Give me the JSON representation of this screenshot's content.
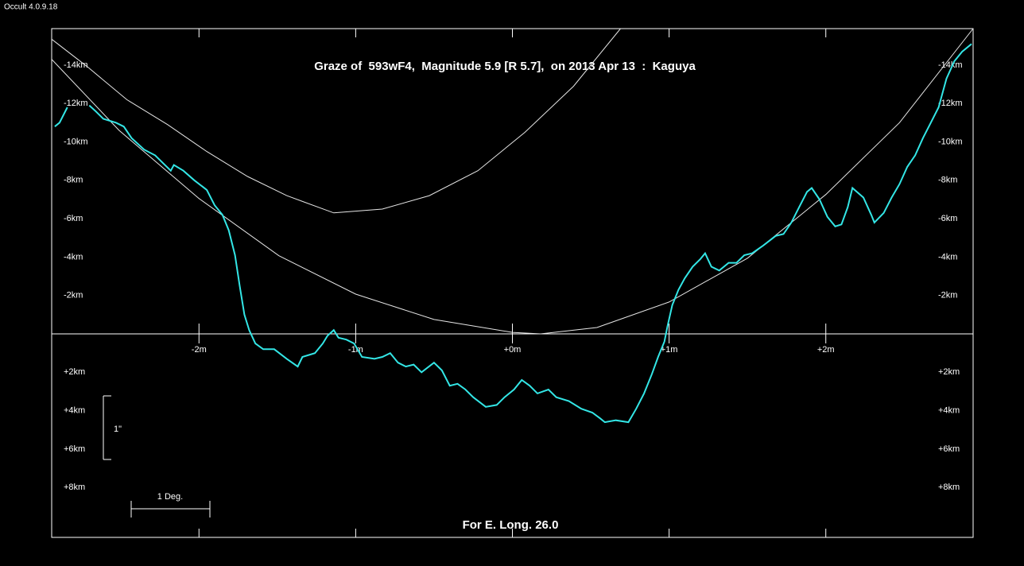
{
  "app_label": "Occult 4.0.9.18",
  "chart_data": {
    "type": "line",
    "title": "Graze of  593wF4,  Magnitude 5.9 [R 5.7],  on 2013 Apr 13  :  Kaguya",
    "footer": "For E. Long. 26.0",
    "scale_labels": {
      "vertical": "1\"",
      "horizontal": "1 Deg."
    },
    "xlim": [
      -2.94,
      2.94
    ],
    "ylim": [
      10.6,
      -15.9
    ],
    "xticks": [
      {
        "value": -2,
        "label": "-2m"
      },
      {
        "value": -1,
        "label": "-1m"
      },
      {
        "value": 0,
        "label": "+0m"
      },
      {
        "value": 1,
        "label": "+1m"
      },
      {
        "value": 2,
        "label": "+2m"
      }
    ],
    "yticks": [
      {
        "value": -14,
        "label": "-14km"
      },
      {
        "value": -12,
        "label": "-12km"
      },
      {
        "value": -10,
        "label": "-10km"
      },
      {
        "value": -8,
        "label": "-8km"
      },
      {
        "value": -6,
        "label": "-6km"
      },
      {
        "value": -4,
        "label": "-4km"
      },
      {
        "value": -2,
        "label": "-2km"
      },
      {
        "value": 2,
        "label": "+2km"
      },
      {
        "value": 4,
        "label": "+4km"
      },
      {
        "value": 6,
        "label": "+6km"
      },
      {
        "value": 8,
        "label": "+8km"
      }
    ],
    "series": [
      {
        "color": "#33e6e6",
        "width": 2,
        "x": [
          -2.92,
          -2.89,
          -2.84,
          null,
          -2.7,
          -2.66,
          -2.61,
          -2.53,
          -2.48,
          -2.43,
          -2.35,
          -2.28,
          -2.23,
          -2.18,
          -2.16,
          -2.1,
          -2.03,
          -1.95,
          -1.9,
          -1.85,
          -1.81,
          -1.77,
          -1.74,
          -1.71,
          -1.68,
          -1.64,
          -1.59,
          -1.52,
          -1.44,
          -1.37,
          -1.34,
          -1.26,
          -1.21,
          -1.18,
          -1.14,
          -1.11,
          -1.06,
          -1.01,
          -0.96,
          -0.88,
          -0.83,
          -0.78,
          -0.73,
          -0.68,
          -0.63,
          -0.58,
          -0.5,
          -0.45,
          -0.4,
          -0.35,
          -0.3,
          -0.25,
          -0.17,
          -0.1,
          -0.05,
          0.01,
          0.06,
          0.11,
          0.16,
          0.23,
          0.28,
          0.36,
          0.44,
          0.51,
          0.56,
          0.59,
          0.66,
          0.74,
          0.79,
          0.84,
          0.89,
          0.93,
          0.97,
          0.99,
          1.02,
          1.06,
          1.1,
          1.15,
          1.2,
          1.23,
          1.27,
          1.32,
          1.38,
          1.43,
          1.48,
          1.53,
          1.6,
          1.68,
          1.73,
          1.78,
          1.83,
          1.88,
          1.91,
          1.96,
          2.01,
          2.06,
          2.1,
          2.14,
          2.17,
          2.24,
          2.29,
          2.31,
          2.37,
          2.42,
          2.47,
          2.52,
          2.57,
          2.62,
          2.67,
          2.72,
          2.77,
          2.82,
          2.87,
          2.93
        ],
        "values": [
          -10.8,
          -11.0,
          -11.8,
          null,
          -11.9,
          -11.6,
          -11.2,
          -11.0,
          -10.8,
          -10.2,
          -9.6,
          -9.3,
          -8.9,
          -8.5,
          -8.8,
          -8.5,
          -8.0,
          -7.5,
          -6.7,
          -6.2,
          -5.4,
          -4.1,
          -2.5,
          -1.0,
          -0.2,
          0.5,
          0.8,
          0.8,
          1.3,
          1.7,
          1.2,
          1.0,
          0.5,
          0.1,
          -0.2,
          0.2,
          0.3,
          0.5,
          1.2,
          1.3,
          1.2,
          1.0,
          1.5,
          1.7,
          1.6,
          2.0,
          1.5,
          1.9,
          2.7,
          2.6,
          2.9,
          3.3,
          3.8,
          3.7,
          3.3,
          2.9,
          2.4,
          2.7,
          3.1,
          2.9,
          3.3,
          3.5,
          3.9,
          4.1,
          4.4,
          4.6,
          4.5,
          4.6,
          3.9,
          3.1,
          2.1,
          1.2,
          0.4,
          -0.4,
          -1.5,
          -2.3,
          -2.9,
          -3.5,
          -3.9,
          -4.2,
          -3.5,
          -3.3,
          -3.7,
          -3.7,
          -4.1,
          -4.2,
          -4.6,
          -5.1,
          -5.2,
          -5.8,
          -6.6,
          -7.4,
          -7.6,
          -7.0,
          -6.1,
          -5.6,
          -5.7,
          -6.6,
          -7.6,
          -7.1,
          -6.2,
          -5.8,
          -6.3,
          -7.1,
          -7.8,
          -8.7,
          -9.3,
          -10.2,
          -11.0,
          -11.8,
          -13.3,
          -14.2,
          -14.7,
          -15.1
        ]
      },
      {
        "color": "#e6e6e6",
        "width": 1,
        "x": [
          -2.94,
          -2.51,
          -2.0,
          -1.49,
          -1.0,
          -0.5,
          0,
          0.18,
          0.54,
          1.0,
          1.5,
          2.0,
          2.47,
          2.94
        ],
        "values": [
          -14.3,
          -10.6,
          -7.05,
          -4.07,
          -2.07,
          -0.75,
          -0.08,
          0,
          -0.33,
          -1.66,
          -3.94,
          -7.26,
          -11.0,
          -15.9
        ]
      },
      {
        "color": "#e6e6e6",
        "width": 1,
        "x": [
          -2.94,
          -2.71,
          -2.46,
          -2.2,
          -1.95,
          -1.69,
          -1.44,
          -1.14,
          -0.83,
          -0.53,
          -0.22,
          0.08,
          0.39,
          0.69
        ],
        "values": [
          -15.35,
          -13.9,
          -12.2,
          -10.9,
          -9.5,
          -8.2,
          -7.2,
          -6.3,
          -6.5,
          -7.2,
          -8.5,
          -10.5,
          -12.9,
          -15.9
        ]
      }
    ]
  }
}
